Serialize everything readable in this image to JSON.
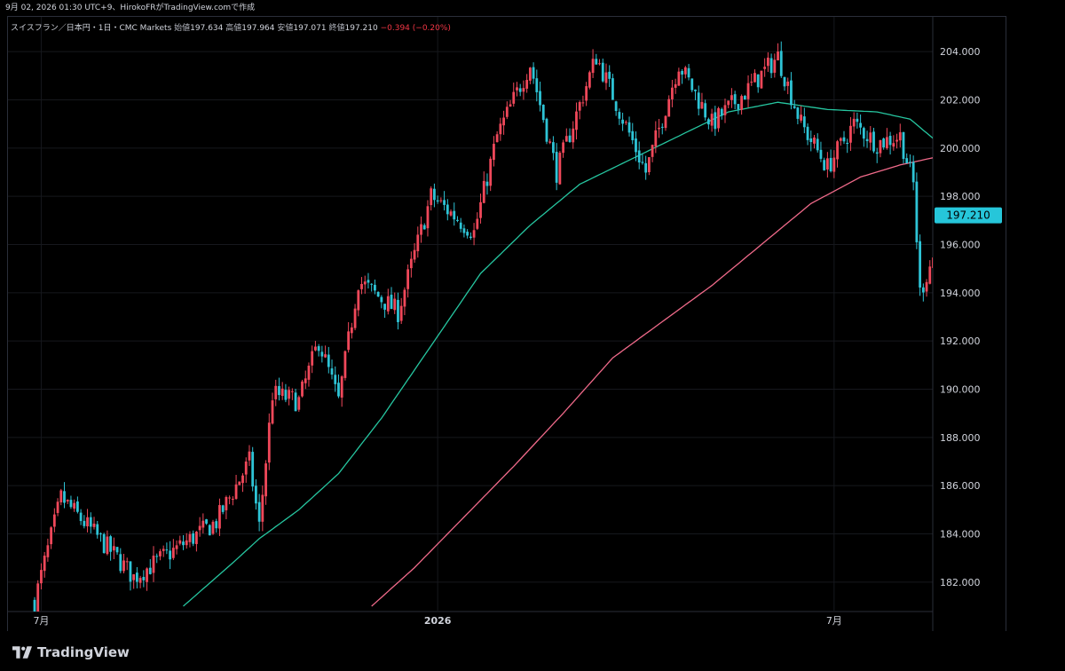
{
  "header": {
    "timestamp_text": "9月 02, 2026 01:30 UTC+9、HirokoFRがTradingView.comで作成"
  },
  "legend": {
    "symbol": "スイスフラン／日本円・1日・CMC Markets",
    "open_label": "始値",
    "open": "197.634",
    "high_label": "高値",
    "high": "197.964",
    "low_label": "安値",
    "low": "197.071",
    "close_label": "終値",
    "close": "197.210",
    "change": "−0.394 (−0.20%)"
  },
  "brand": {
    "name": "TradingView"
  },
  "colors": {
    "background": "#000000",
    "up": "#f0485a",
    "down": "#2ec4d6",
    "ma_short": "#26c6a0",
    "ma_long": "#f06a8a",
    "price_tag": "#26c6da",
    "grid": "#16181d"
  },
  "chart_data": {
    "type": "candlestick",
    "y_ticks": [
      "182.000",
      "184.000",
      "186.000",
      "188.000",
      "190.000",
      "192.000",
      "194.000",
      "196.000",
      "198.000",
      "200.000",
      "202.000",
      "204.000"
    ],
    "ylim": [
      181.0,
      205.0
    ],
    "x_ticks": [
      {
        "label": "7月",
        "bold": false,
        "index": 2
      },
      {
        "label": "2026",
        "bold": true,
        "index": 122
      },
      {
        "label": "7月",
        "bold": false,
        "index": 242
      }
    ],
    "last_price": "197.210",
    "bar_count": 282,
    "key_points": [
      {
        "i": 0,
        "v": 181.2
      },
      {
        "i": 8,
        "v": 185.5
      },
      {
        "i": 25,
        "v": 183.0
      },
      {
        "i": 30,
        "v": 182.2
      },
      {
        "i": 55,
        "v": 184.5
      },
      {
        "i": 65,
        "v": 187.0
      },
      {
        "i": 68,
        "v": 184.3
      },
      {
        "i": 72,
        "v": 189.8
      },
      {
        "i": 80,
        "v": 189.5
      },
      {
        "i": 86,
        "v": 192.0
      },
      {
        "i": 92,
        "v": 189.5
      },
      {
        "i": 98,
        "v": 194.5
      },
      {
        "i": 110,
        "v": 193.2
      },
      {
        "i": 120,
        "v": 198.0
      },
      {
        "i": 133,
        "v": 196.5
      },
      {
        "i": 140,
        "v": 200.5
      },
      {
        "i": 150,
        "v": 203.5
      },
      {
        "i": 158,
        "v": 199.0
      },
      {
        "i": 170,
        "v": 203.8
      },
      {
        "i": 185,
        "v": 199.0
      },
      {
        "i": 195,
        "v": 203.5
      },
      {
        "i": 205,
        "v": 201.0
      },
      {
        "i": 215,
        "v": 202.3
      },
      {
        "i": 225,
        "v": 203.8
      },
      {
        "i": 232,
        "v": 201.0
      },
      {
        "i": 240,
        "v": 199.2
      },
      {
        "i": 248,
        "v": 201.0
      },
      {
        "i": 255,
        "v": 200.2
      },
      {
        "i": 262,
        "v": 200.5
      },
      {
        "i": 266,
        "v": 198.5
      },
      {
        "i": 268,
        "v": 194.0
      },
      {
        "i": 272,
        "v": 195.5
      },
      {
        "i": 276,
        "v": 196.5
      },
      {
        "i": 278,
        "v": 198.3
      },
      {
        "i": 281,
        "v": 197.21
      }
    ],
    "ma_short_points": [
      {
        "i": 45,
        "v": 181.0
      },
      {
        "i": 60,
        "v": 182.8
      },
      {
        "i": 68,
        "v": 183.8
      },
      {
        "i": 80,
        "v": 185.0
      },
      {
        "i": 92,
        "v": 186.5
      },
      {
        "i": 105,
        "v": 188.8
      },
      {
        "i": 120,
        "v": 191.8
      },
      {
        "i": 135,
        "v": 194.8
      },
      {
        "i": 150,
        "v": 196.8
      },
      {
        "i": 165,
        "v": 198.5
      },
      {
        "i": 180,
        "v": 199.5
      },
      {
        "i": 195,
        "v": 200.5
      },
      {
        "i": 210,
        "v": 201.5
      },
      {
        "i": 225,
        "v": 201.9
      },
      {
        "i": 240,
        "v": 201.6
      },
      {
        "i": 255,
        "v": 201.5
      },
      {
        "i": 265,
        "v": 201.2
      },
      {
        "i": 272,
        "v": 200.4
      },
      {
        "i": 281,
        "v": 199.7
      }
    ],
    "ma_long_points": [
      {
        "i": 102,
        "v": 181.0
      },
      {
        "i": 115,
        "v": 182.6
      },
      {
        "i": 130,
        "v": 184.7
      },
      {
        "i": 145,
        "v": 186.8
      },
      {
        "i": 160,
        "v": 189.0
      },
      {
        "i": 175,
        "v": 191.3
      },
      {
        "i": 190,
        "v": 192.8
      },
      {
        "i": 205,
        "v": 194.3
      },
      {
        "i": 220,
        "v": 196.0
      },
      {
        "i": 235,
        "v": 197.7
      },
      {
        "i": 250,
        "v": 198.8
      },
      {
        "i": 262,
        "v": 199.3
      },
      {
        "i": 272,
        "v": 199.6
      },
      {
        "i": 281,
        "v": 199.7
      }
    ]
  }
}
